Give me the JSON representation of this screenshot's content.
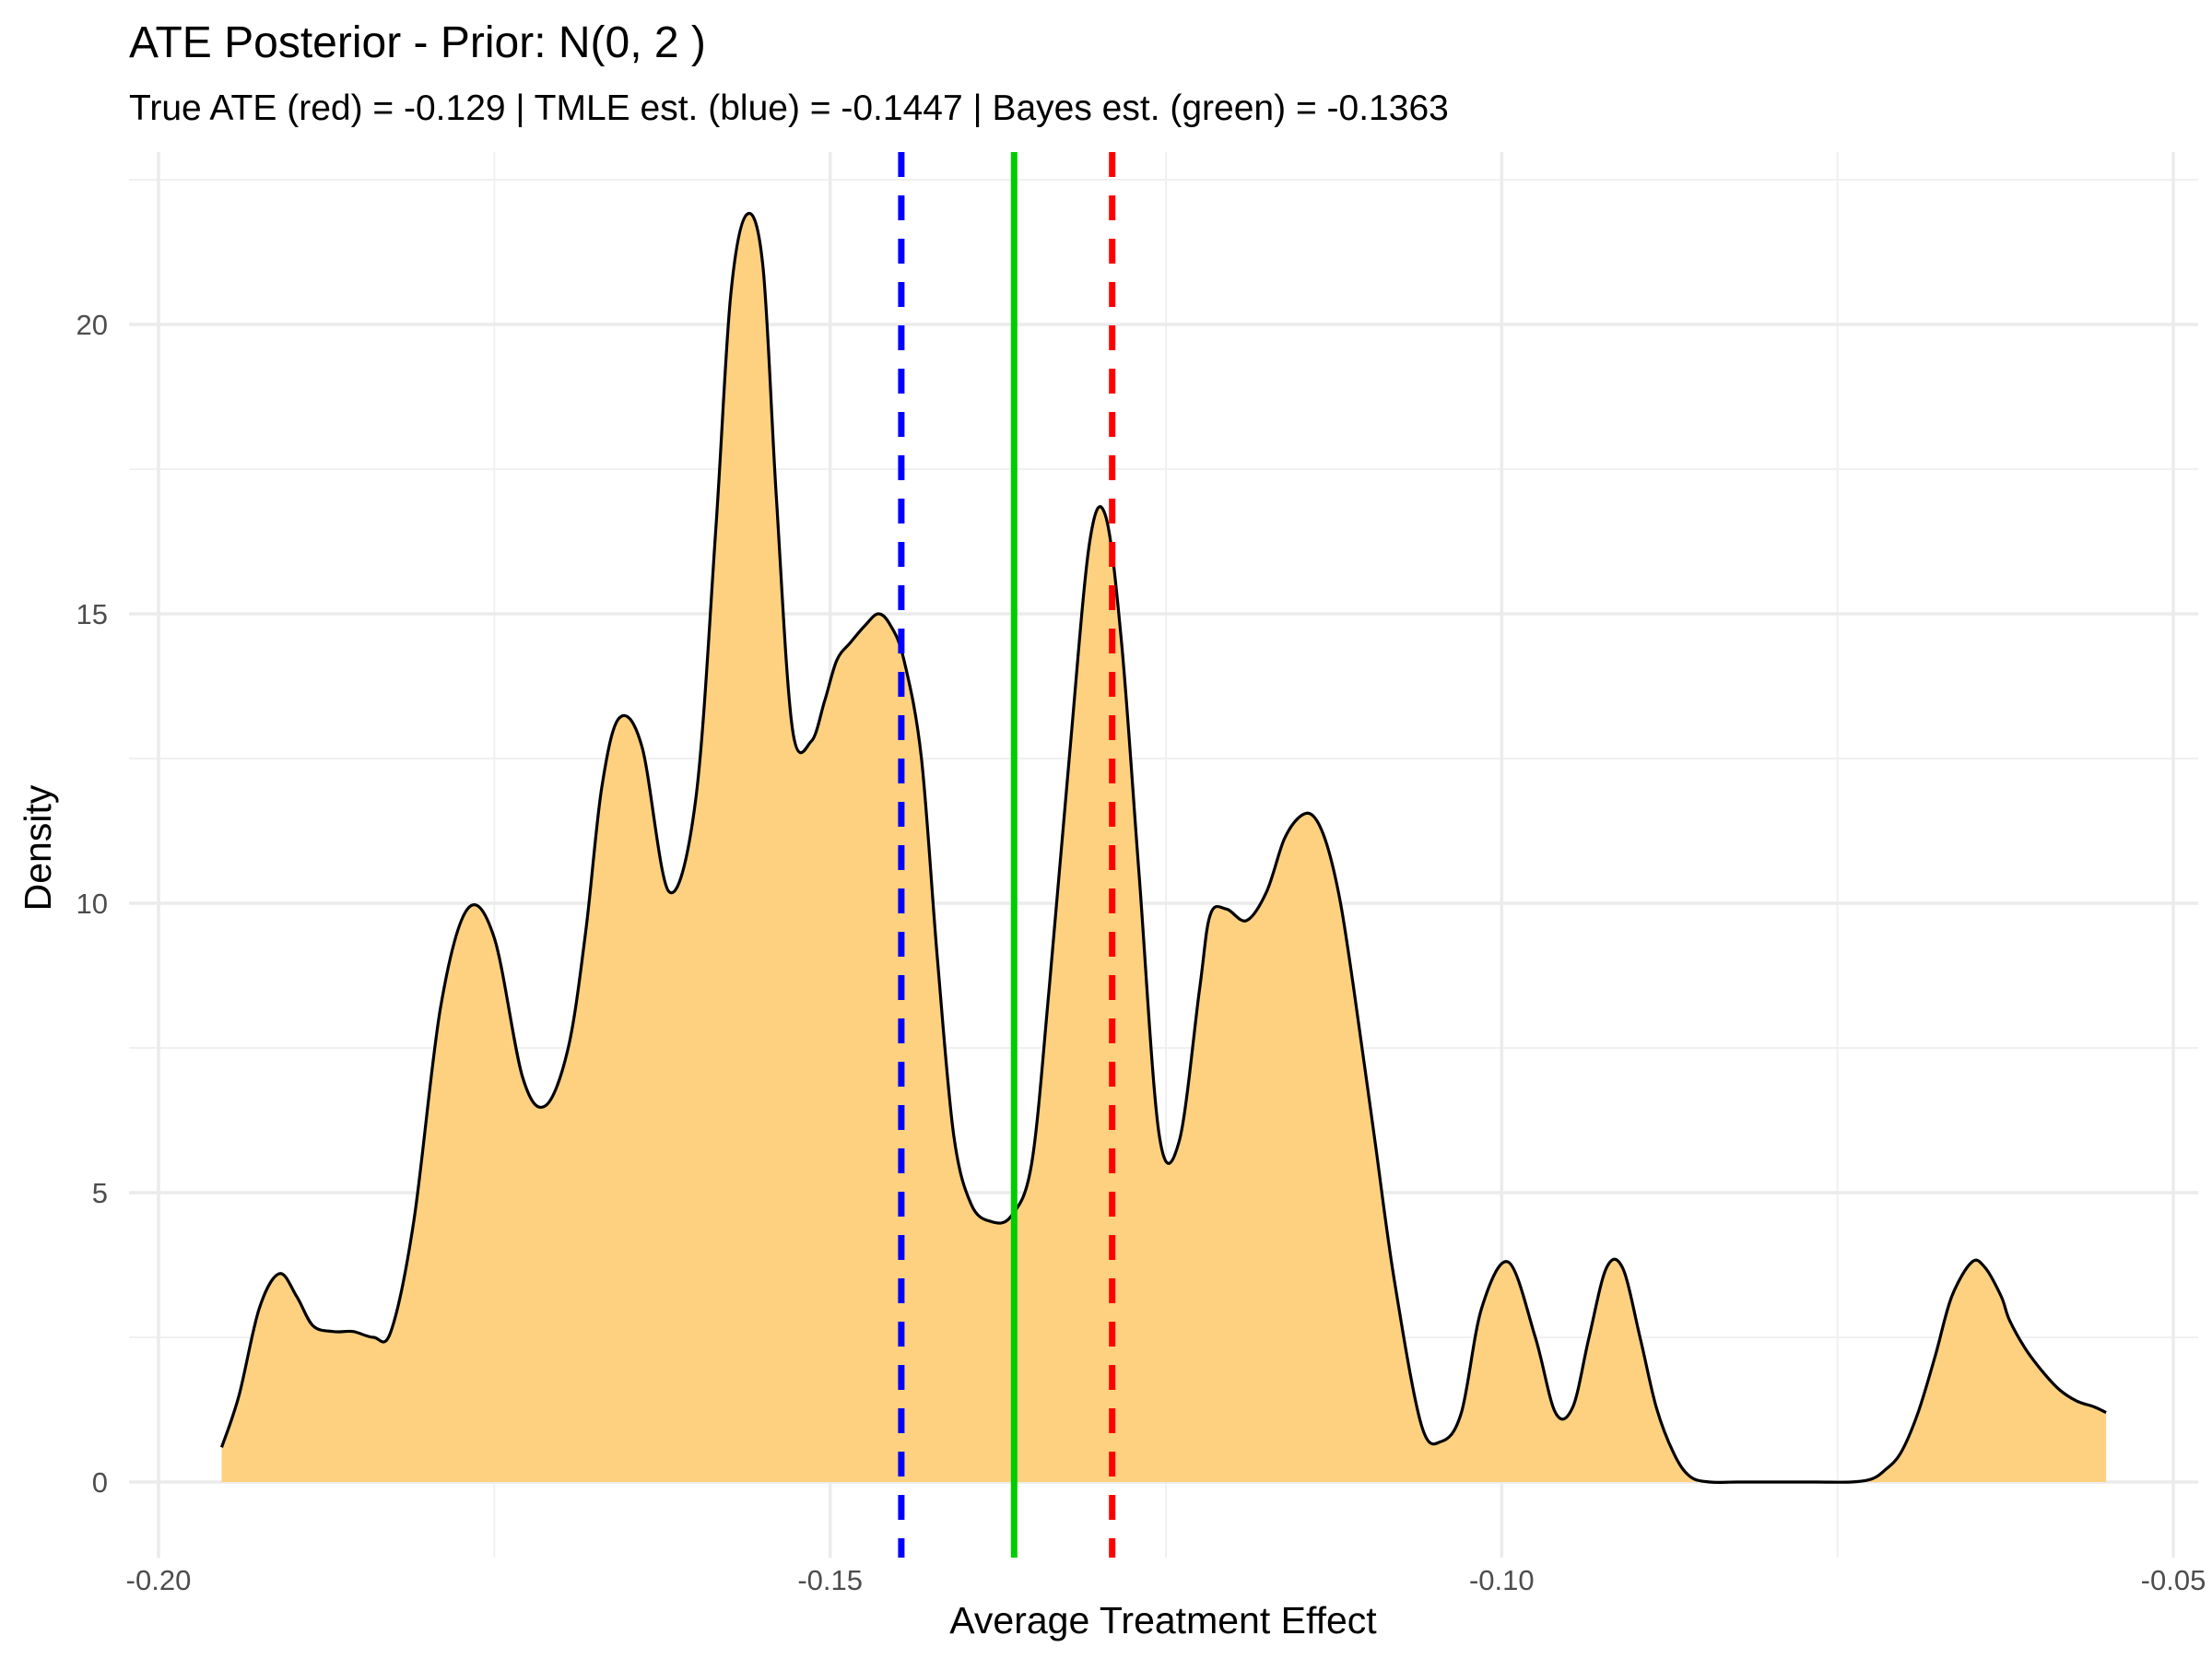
{
  "chart_data": {
    "type": "area",
    "title": "ATE Posterior - Prior: N(0, 2 )",
    "subtitle": "True ATE (red) = -0.129 | TMLE est. (blue) = -0.1447 | Bayes est. (green) = -0.1363",
    "xlabel": "Average Treatment Effect",
    "ylabel": "Density",
    "xlim": [
      -0.2,
      -0.05
    ],
    "ylim": [
      0,
      22
    ],
    "x_ticks": [
      -0.2,
      -0.15,
      -0.1,
      -0.05
    ],
    "x_tick_labels": [
      "-0.20",
      "-0.15",
      "-0.10",
      "-0.05"
    ],
    "y_ticks": [
      0,
      5,
      10,
      15,
      20
    ],
    "y_tick_labels": [
      "0",
      "5",
      "10",
      "15",
      "20"
    ],
    "grid": true,
    "fill_color": "#FDD180",
    "line_color": "#000000",
    "density": {
      "x": [
        -0.1953,
        -0.194,
        -0.1925,
        -0.191,
        -0.1897,
        -0.1885,
        -0.187,
        -0.1855,
        -0.184,
        -0.1827,
        -0.181,
        -0.179,
        -0.177,
        -0.175,
        -0.1729,
        -0.1712,
        -0.1695,
        -0.1682,
        -0.167,
        -0.1657,
        -0.164,
        -0.162,
        -0.16,
        -0.1585,
        -0.1574,
        -0.1562,
        -0.155,
        -0.154,
        -0.1528,
        -0.1514,
        -0.1504,
        -0.1495,
        -0.1485,
        -0.1474,
        -0.1464,
        -0.1455,
        -0.1445,
        -0.1432,
        -0.142,
        -0.1408,
        -0.1395,
        -0.138,
        -0.1365,
        -0.135,
        -0.1337,
        -0.1322,
        -0.1307,
        -0.1295,
        -0.1283,
        -0.127,
        -0.1255,
        -0.124,
        -0.1225,
        -0.1217,
        -0.1205,
        -0.119,
        -0.1175,
        -0.1162,
        -0.115,
        -0.114,
        -0.113,
        -0.112,
        -0.111,
        -0.1095,
        -0.108,
        -0.106,
        -0.1045,
        -0.103,
        -0.1015,
        -0.0995,
        -0.0975,
        -0.096,
        -0.0947,
        -0.0935,
        -0.0922,
        -0.091,
        -0.0897,
        -0.0885,
        -0.0872,
        -0.086,
        -0.0845,
        -0.0825,
        -0.0795,
        -0.0765,
        -0.074,
        -0.0725,
        -0.0715,
        -0.0703,
        -0.069,
        -0.0677,
        -0.0665,
        -0.065,
        -0.064,
        -0.0628,
        -0.0622,
        -0.061,
        -0.0597,
        -0.0585,
        -0.0572,
        -0.0559,
        -0.055
      ],
      "y": [
        0.6,
        1.5,
        3.0,
        3.6,
        3.2,
        2.7,
        2.6,
        2.6,
        2.5,
        2.6,
        4.5,
        8.2,
        9.9,
        9.4,
        7.0,
        6.5,
        7.5,
        9.5,
        12.0,
        13.2,
        12.7,
        10.2,
        11.8,
        16.5,
        20.5,
        21.9,
        21.0,
        17.0,
        13.0,
        12.8,
        13.5,
        14.2,
        14.5,
        14.8,
        15.0,
        14.8,
        14.2,
        12.5,
        9.0,
        6.0,
        4.8,
        4.5,
        4.6,
        5.5,
        8.5,
        12.5,
        16.2,
        16.7,
        14.5,
        10.5,
        6.0,
        5.9,
        8.5,
        9.8,
        9.9,
        9.7,
        10.2,
        11.1,
        11.5,
        11.5,
        11.0,
        10.0,
        8.5,
        6.0,
        3.5,
        1.0,
        0.7,
        1.2,
        3.0,
        3.8,
        2.5,
        1.2,
        1.3,
        2.5,
        3.7,
        3.7,
        2.5,
        1.3,
        0.5,
        0.1,
        0.0,
        0.0,
        0.0,
        0.0,
        0.0,
        0.05,
        0.2,
        0.5,
        1.2,
        2.2,
        3.2,
        3.8,
        3.7,
        3.2,
        2.8,
        2.3,
        1.9,
        1.6,
        1.4,
        1.3,
        1.2
      ]
    },
    "vlines": [
      {
        "name": "Bayes est.",
        "x": -0.1363,
        "color": "#00CD00",
        "style": "solid"
      },
      {
        "name": "TMLE est.",
        "x": -0.1447,
        "color": "#0000FF",
        "style": "dashed"
      },
      {
        "name": "True ATE",
        "x": -0.129,
        "color": "#FF0000",
        "style": "dashed"
      }
    ]
  }
}
